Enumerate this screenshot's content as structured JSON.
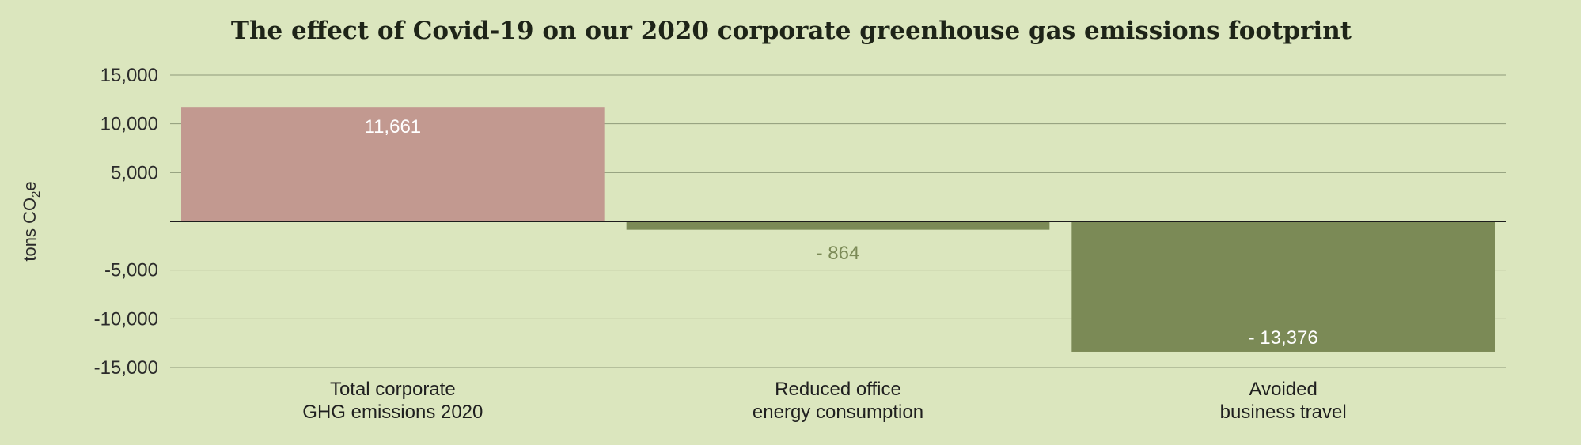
{
  "chart_data": {
    "type": "bar",
    "title": "The effect of Covid-19 on our 2020 corporate greenhouse gas emissions footprint",
    "ylabel": "tons CO",
    "ylabel_sub": "2",
    "ylabel_suffix": "e",
    "ylim": [
      -15000,
      15000
    ],
    "yticks": [
      15000,
      10000,
      5000,
      -5000,
      -10000,
      -15000
    ],
    "ytick_labels": [
      "15,000",
      "10,000",
      "5,000",
      "-5,000",
      "-10,000",
      "-15,000"
    ],
    "grid": true,
    "categories": [
      [
        "Total corporate",
        "GHG emissions 2020"
      ],
      [
        "Reduced office",
        "energy consumption"
      ],
      [
        "Avoided",
        "business travel"
      ]
    ],
    "values": [
      11661,
      -864,
      -13376
    ],
    "value_labels": [
      "11,661",
      "- 864",
      "- 13,376"
    ],
    "colors": [
      "#c29990",
      "#7b8a56",
      "#7b8a56"
    ],
    "label_colors": [
      "#ffffff",
      "#7b8a56",
      "#ffffff"
    ]
  }
}
